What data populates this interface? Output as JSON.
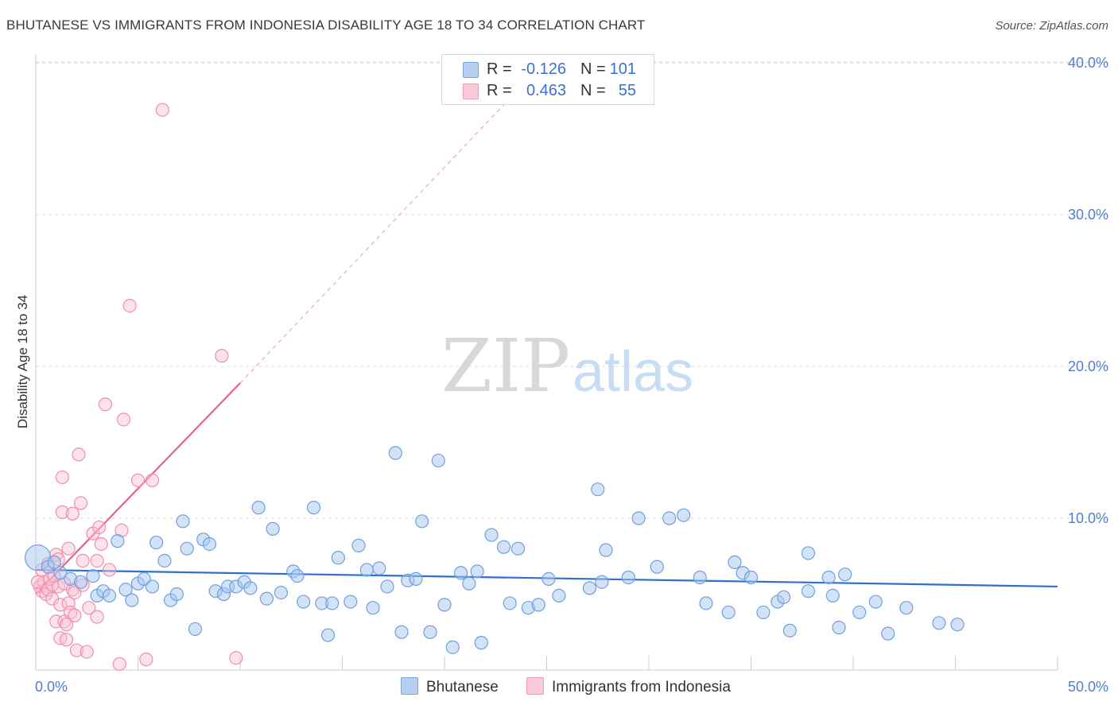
{
  "title": "BHUTANESE VS IMMIGRANTS FROM INDONESIA DISABILITY AGE 18 TO 34 CORRELATION CHART",
  "source": "Source: ZipAtlas.com",
  "colors": {
    "blue_fill": "#a8c8f0",
    "blue_stroke": "#6f9fe0",
    "blue_line": "#2f6fcf",
    "pink_fill": "#f8c0d0",
    "pink_stroke": "#ee8fae",
    "pink_line": "#e8608f",
    "grid": "#dddddd",
    "tick_text": "#4f7fd0"
  },
  "legend": {
    "rows": [
      {
        "r_label": "R =",
        "r_value": "-0.126",
        "n_label": "N =",
        "n_value": "101"
      },
      {
        "r_label": "R =",
        "r_value": "0.463",
        "n_label": "N =",
        "n_value": "55"
      }
    ]
  },
  "bottom_legend": {
    "series1": "Bhutanese",
    "series2": "Immigrants from Indonesia"
  },
  "watermark": {
    "part1": "ZIP",
    "part2": "atlas"
  },
  "chart_data": {
    "type": "scatter",
    "title": "BHUTANESE VS IMMIGRANTS FROM INDONESIA DISABILITY AGE 18 TO 34 CORRELATION CHART",
    "xlabel": "",
    "ylabel": "Disability Age 18 to 34",
    "xlim": [
      0,
      50
    ],
    "ylim": [
      0,
      42
    ],
    "x_tick_labels": [
      "0.0%",
      "50.0%"
    ],
    "y_ticks": [
      10,
      20,
      30,
      40
    ],
    "y_tick_labels": [
      "10.0%",
      "20.0%",
      "30.0%",
      "40.0%"
    ],
    "series": [
      {
        "name": "Bhutanese",
        "points": [
          [
            0.1,
            7.4
          ],
          [
            0.6,
            6.8
          ],
          [
            0.9,
            7.1
          ],
          [
            1.2,
            6.4
          ],
          [
            1.7,
            6.0
          ],
          [
            2.2,
            5.8
          ],
          [
            2.8,
            6.2
          ],
          [
            3.0,
            4.9
          ],
          [
            3.3,
            5.2
          ],
          [
            3.6,
            4.9
          ],
          [
            4.0,
            8.5
          ],
          [
            4.4,
            5.3
          ],
          [
            4.7,
            4.6
          ],
          [
            5.0,
            5.7
          ],
          [
            5.3,
            6.0
          ],
          [
            5.7,
            5.5
          ],
          [
            5.9,
            8.4
          ],
          [
            6.3,
            7.2
          ],
          [
            6.6,
            4.6
          ],
          [
            6.9,
            5.0
          ],
          [
            7.2,
            9.8
          ],
          [
            7.4,
            8.0
          ],
          [
            7.8,
            2.7
          ],
          [
            8.2,
            8.6
          ],
          [
            8.5,
            8.3
          ],
          [
            8.8,
            5.2
          ],
          [
            9.2,
            5.0
          ],
          [
            9.4,
            5.5
          ],
          [
            9.8,
            5.5
          ],
          [
            10.2,
            5.8
          ],
          [
            10.5,
            5.4
          ],
          [
            10.9,
            10.7
          ],
          [
            11.3,
            4.7
          ],
          [
            11.6,
            9.3
          ],
          [
            12.0,
            5.1
          ],
          [
            12.6,
            6.5
          ],
          [
            12.8,
            6.2
          ],
          [
            13.1,
            4.5
          ],
          [
            13.6,
            10.7
          ],
          [
            14.0,
            4.4
          ],
          [
            14.3,
            2.3
          ],
          [
            14.5,
            4.4
          ],
          [
            14.8,
            7.4
          ],
          [
            15.4,
            4.5
          ],
          [
            15.8,
            8.2
          ],
          [
            16.2,
            6.6
          ],
          [
            16.5,
            4.1
          ],
          [
            16.8,
            6.7
          ],
          [
            17.2,
            5.5
          ],
          [
            17.6,
            14.3
          ],
          [
            17.9,
            2.5
          ],
          [
            18.2,
            5.9
          ],
          [
            18.6,
            6.0
          ],
          [
            18.9,
            9.8
          ],
          [
            19.3,
            2.5
          ],
          [
            19.7,
            13.8
          ],
          [
            20.0,
            4.3
          ],
          [
            20.4,
            1.5
          ],
          [
            20.8,
            6.4
          ],
          [
            21.2,
            5.7
          ],
          [
            21.6,
            6.5
          ],
          [
            21.8,
            1.8
          ],
          [
            22.3,
            8.9
          ],
          [
            22.9,
            8.1
          ],
          [
            23.2,
            4.4
          ],
          [
            23.6,
            8.0
          ],
          [
            24.1,
            4.1
          ],
          [
            24.6,
            4.3
          ],
          [
            25.1,
            6.0
          ],
          [
            25.6,
            4.9
          ],
          [
            27.1,
            5.4
          ],
          [
            27.5,
            11.9
          ],
          [
            27.7,
            5.8
          ],
          [
            27.9,
            7.9
          ],
          [
            29.0,
            6.1
          ],
          [
            29.5,
            10.0
          ],
          [
            30.4,
            6.8
          ],
          [
            31.0,
            10.0
          ],
          [
            31.7,
            10.2
          ],
          [
            32.5,
            6.1
          ],
          [
            32.8,
            4.4
          ],
          [
            33.9,
            3.8
          ],
          [
            34.2,
            7.1
          ],
          [
            34.6,
            6.4
          ],
          [
            35.0,
            6.1
          ],
          [
            35.6,
            3.8
          ],
          [
            36.3,
            4.5
          ],
          [
            36.6,
            4.8
          ],
          [
            36.9,
            2.6
          ],
          [
            37.8,
            5.2
          ],
          [
            37.8,
            7.7
          ],
          [
            38.8,
            6.1
          ],
          [
            39.0,
            4.9
          ],
          [
            39.3,
            2.8
          ],
          [
            39.6,
            6.3
          ],
          [
            40.3,
            3.8
          ],
          [
            41.1,
            4.5
          ],
          [
            41.7,
            2.4
          ],
          [
            42.6,
            4.1
          ],
          [
            44.2,
            3.1
          ],
          [
            45.1,
            3.0
          ]
        ]
      },
      {
        "name": "Immigrants from Indonesia",
        "points": [
          [
            0.2,
            5.5
          ],
          [
            0.3,
            6.6
          ],
          [
            0.3,
            5.2
          ],
          [
            0.4,
            5.8
          ],
          [
            0.5,
            5.0
          ],
          [
            0.6,
            7.0
          ],
          [
            0.6,
            5.3
          ],
          [
            0.7,
            6.0
          ],
          [
            0.8,
            5.6
          ],
          [
            0.8,
            4.7
          ],
          [
            0.9,
            6.2
          ],
          [
            1.0,
            7.6
          ],
          [
            1.0,
            3.2
          ],
          [
            1.1,
            7.3
          ],
          [
            1.1,
            5.5
          ],
          [
            1.2,
            2.1
          ],
          [
            1.2,
            4.3
          ],
          [
            1.3,
            12.7
          ],
          [
            1.3,
            10.4
          ],
          [
            1.4,
            5.7
          ],
          [
            1.4,
            3.2
          ],
          [
            1.5,
            3.0
          ],
          [
            1.5,
            2.0
          ],
          [
            1.6,
            8.0
          ],
          [
            1.6,
            4.4
          ],
          [
            1.7,
            3.8
          ],
          [
            1.8,
            5.3
          ],
          [
            1.8,
            10.3
          ],
          [
            1.9,
            5.1
          ],
          [
            1.9,
            3.6
          ],
          [
            2.0,
            1.3
          ],
          [
            2.1,
            14.2
          ],
          [
            2.2,
            11.0
          ],
          [
            2.3,
            7.2
          ],
          [
            2.3,
            5.6
          ],
          [
            2.5,
            1.2
          ],
          [
            2.6,
            4.1
          ],
          [
            2.8,
            9.0
          ],
          [
            3.0,
            7.2
          ],
          [
            3.0,
            3.5
          ],
          [
            3.1,
            9.4
          ],
          [
            3.2,
            8.3
          ],
          [
            3.4,
            17.5
          ],
          [
            3.6,
            6.6
          ],
          [
            4.1,
            0.4
          ],
          [
            4.2,
            9.2
          ],
          [
            4.3,
            16.5
          ],
          [
            4.6,
            24.0
          ],
          [
            5.0,
            12.5
          ],
          [
            5.4,
            0.7
          ],
          [
            5.7,
            12.5
          ],
          [
            6.2,
            36.9
          ],
          [
            9.1,
            20.7
          ],
          [
            9.8,
            0.8
          ],
          [
            0.1,
            5.8
          ]
        ]
      }
    ],
    "trendlines": [
      {
        "series": "Bhutanese",
        "x": [
          0,
          50
        ],
        "y": [
          6.6,
          5.5
        ]
      },
      {
        "series": "Immigrants from Indonesia",
        "x": [
          0,
          10
        ],
        "y": [
          5.0,
          18.9
        ],
        "dashed_extension": {
          "x": [
            10,
            24
          ],
          "y": [
            18.9,
            38.8
          ]
        }
      }
    ]
  }
}
